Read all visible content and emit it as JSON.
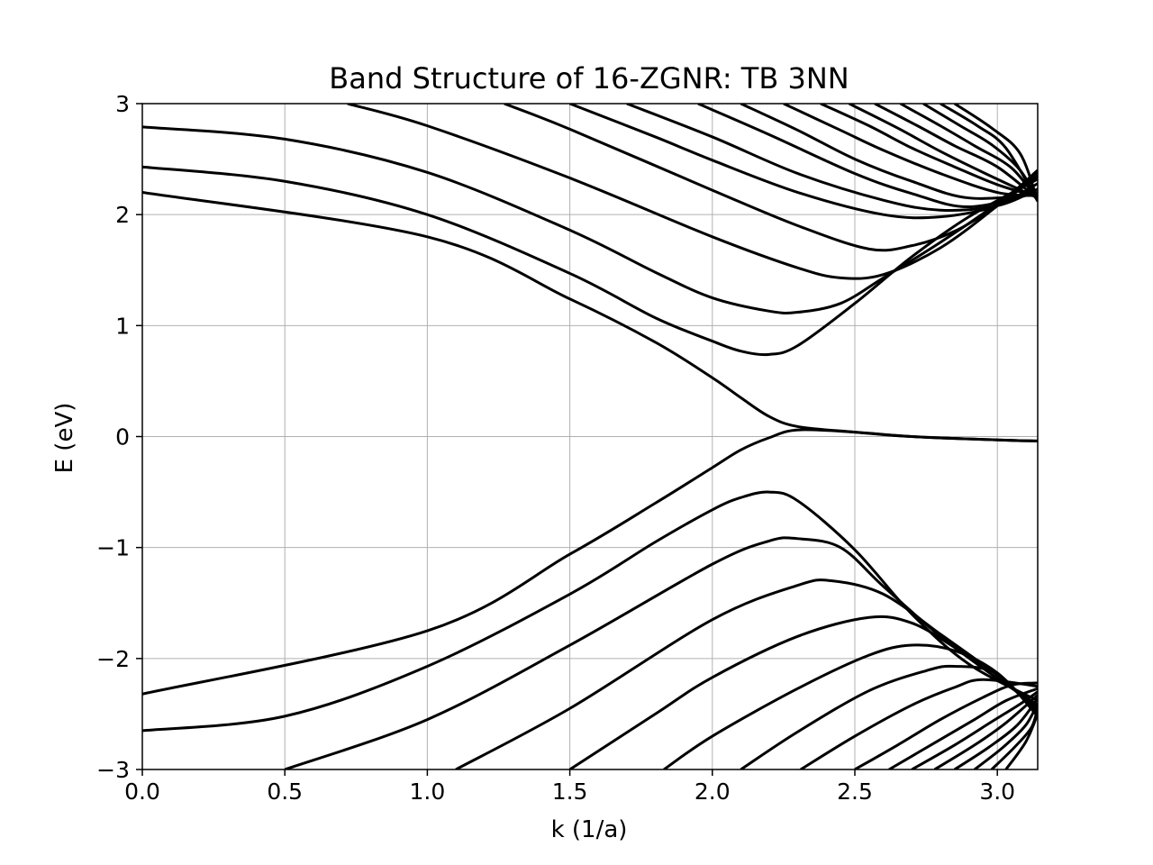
{
  "chart_data": {
    "type": "line",
    "title": "Band Structure of 16-ZGNR: TB 3NN",
    "xlabel": "k (1/a)",
    "ylabel": "E (eV)",
    "xlim": [
      0,
      3.1416
    ],
    "ylim": [
      -3,
      3
    ],
    "xticks": [
      0.0,
      0.5,
      1.0,
      1.5,
      2.0,
      2.5,
      3.0
    ],
    "xtick_labels": [
      "0.0",
      "0.5",
      "1.0",
      "1.5",
      "2.0",
      "2.5",
      "3.0"
    ],
    "yticks": [
      -3,
      -2,
      -1,
      0,
      1,
      2,
      3
    ],
    "ytick_labels": [
      "−3",
      "−2",
      "−1",
      "0",
      "1",
      "2",
      "3"
    ],
    "grid": true,
    "line_color": "#000000",
    "grid_color": "#b0b0b0",
    "series": [
      {
        "x": [
          0,
          1.0,
          1.5,
          1.8,
          2.0,
          2.1,
          2.2,
          2.3,
          2.5,
          2.7,
          3.0,
          3.1416
        ],
        "y": [
          2.2,
          1.8,
          1.24,
          0.85,
          0.53,
          0.35,
          0.18,
          0.09,
          0.04,
          0.0,
          -0.03,
          -0.04
        ]
      },
      {
        "x": [
          0,
          0.5,
          1.0,
          1.5,
          1.8,
          2.0,
          2.1,
          2.2,
          2.3,
          2.5,
          2.7,
          2.9,
          3.1416
        ],
        "y": [
          2.43,
          2.3,
          2.0,
          1.47,
          1.07,
          0.86,
          0.77,
          0.74,
          0.82,
          1.2,
          1.62,
          1.98,
          2.32
        ]
      },
      {
        "x": [
          0,
          0.5,
          1.0,
          1.5,
          1.8,
          2.0,
          2.2,
          2.3,
          2.45,
          2.6,
          2.8,
          3.0,
          3.1416
        ],
        "y": [
          2.79,
          2.68,
          2.38,
          1.86,
          1.48,
          1.25,
          1.13,
          1.12,
          1.2,
          1.43,
          1.75,
          2.1,
          2.38
        ]
      },
      {
        "x": [
          0.72,
          1.0,
          1.5,
          2.0,
          2.3,
          2.45,
          2.6,
          2.8,
          3.0,
          3.1416
        ],
        "y": [
          3.0,
          2.8,
          2.33,
          1.8,
          1.52,
          1.43,
          1.46,
          1.7,
          2.08,
          2.4
        ]
      },
      {
        "x": [
          1.27,
          1.5,
          2.0,
          2.3,
          2.55,
          2.7,
          2.85,
          3.0,
          3.1416
        ],
        "y": [
          3.0,
          2.77,
          2.22,
          1.9,
          1.69,
          1.72,
          1.85,
          2.08,
          2.35
        ]
      },
      {
        "x": [
          1.5,
          1.8,
          2.0,
          2.3,
          2.6,
          2.8,
          3.0,
          3.1416
        ],
        "y": [
          3.0,
          2.7,
          2.49,
          2.2,
          2.0,
          1.98,
          2.08,
          2.28
        ]
      },
      {
        "x": [
          1.7,
          2.0,
          2.3,
          2.6,
          2.8,
          3.0,
          3.1416
        ],
        "y": [
          3.0,
          2.7,
          2.37,
          2.13,
          2.04,
          2.08,
          2.23
        ]
      },
      {
        "x": [
          1.95,
          2.2,
          2.5,
          2.7,
          2.9,
          3.1416
        ],
        "y": [
          3.0,
          2.72,
          2.37,
          2.19,
          2.07,
          2.2
        ]
      },
      {
        "x": [
          2.1,
          2.3,
          2.5,
          2.7,
          2.9,
          3.1416
        ],
        "y": [
          3.0,
          2.76,
          2.5,
          2.3,
          2.15,
          2.18
        ]
      },
      {
        "x": [
          2.25,
          2.45,
          2.6,
          2.8,
          3.0,
          3.1416
        ],
        "y": [
          3.0,
          2.76,
          2.58,
          2.37,
          2.2,
          2.17
        ]
      },
      {
        "x": [
          2.38,
          2.55,
          2.7,
          2.85,
          3.0,
          3.1416
        ],
        "y": [
          3.0,
          2.8,
          2.6,
          2.43,
          2.27,
          2.16
        ]
      },
      {
        "x": [
          2.48,
          2.65,
          2.8,
          2.95,
          3.1416
        ],
        "y": [
          3.0,
          2.78,
          2.57,
          2.38,
          2.15
        ]
      },
      {
        "x": [
          2.57,
          2.72,
          2.85,
          3.0,
          3.1416
        ],
        "y": [
          3.0,
          2.8,
          2.62,
          2.43,
          2.14
        ]
      },
      {
        "x": [
          2.66,
          2.8,
          2.92,
          3.05,
          3.1416
        ],
        "y": [
          3.0,
          2.8,
          2.62,
          2.42,
          2.13
        ]
      },
      {
        "x": [
          2.74,
          2.87,
          2.98,
          3.08,
          3.1416
        ],
        "y": [
          3.0,
          2.8,
          2.63,
          2.4,
          2.13
        ]
      },
      {
        "x": [
          2.8,
          2.93,
          3.03,
          3.1416
        ],
        "y": [
          3.0,
          2.8,
          2.6,
          2.12
        ]
      },
      {
        "x": [
          2.85,
          2.98,
          3.08,
          3.1416
        ],
        "y": [
          3.0,
          2.78,
          2.55,
          2.12
        ]
      },
      {
        "x": [
          0,
          1.0,
          1.5,
          1.8,
          2.0,
          2.1,
          2.2,
          2.3,
          2.5,
          2.7,
          3.0,
          3.1416
        ],
        "y": [
          -2.32,
          -1.75,
          -1.06,
          -0.6,
          -0.28,
          -0.12,
          -0.01,
          0.06,
          0.04,
          0.0,
          -0.03,
          -0.04
        ]
      },
      {
        "x": [
          0,
          0.5,
          1.0,
          1.5,
          1.8,
          2.0,
          2.1,
          2.2,
          2.3,
          2.5,
          2.7,
          2.9,
          3.1416
        ],
        "y": [
          -2.65,
          -2.52,
          -2.07,
          -1.42,
          -0.95,
          -0.66,
          -0.55,
          -0.5,
          -0.58,
          -1.02,
          -1.6,
          -2.05,
          -2.38
        ]
      },
      {
        "x": [
          0.5,
          1.0,
          1.5,
          2.0,
          2.2,
          2.3,
          2.45,
          2.6,
          2.8,
          3.0,
          3.1416
        ],
        "y": [
          -3.0,
          -2.55,
          -1.88,
          -1.15,
          -0.94,
          -0.92,
          -1.0,
          -1.35,
          -1.8,
          -2.18,
          -2.42
        ]
      },
      {
        "x": [
          1.1,
          1.5,
          2.0,
          2.3,
          2.42,
          2.6,
          2.8,
          3.0,
          3.1416
        ],
        "y": [
          -3.0,
          -2.45,
          -1.65,
          -1.34,
          -1.3,
          -1.42,
          -1.78,
          -2.15,
          -2.45
        ]
      },
      {
        "x": [
          1.5,
          1.8,
          2.0,
          2.3,
          2.55,
          2.7,
          2.85,
          3.0,
          3.1416
        ],
        "y": [
          -3.0,
          -2.5,
          -2.17,
          -1.8,
          -1.63,
          -1.68,
          -1.9,
          -2.15,
          -2.48
        ]
      },
      {
        "x": [
          1.83,
          2.0,
          2.3,
          2.55,
          2.7,
          2.85,
          3.0,
          3.1416
        ],
        "y": [
          -3.0,
          -2.7,
          -2.27,
          -1.97,
          -1.88,
          -1.93,
          -2.13,
          -2.5
        ]
      },
      {
        "x": [
          2.1,
          2.3,
          2.55,
          2.75,
          2.85,
          3.0,
          3.1416
        ],
        "y": [
          -3.0,
          -2.66,
          -2.29,
          -2.11,
          -2.07,
          -2.14,
          -2.52
        ]
      },
      {
        "x": [
          2.31,
          2.5,
          2.7,
          2.85,
          2.95,
          3.1416
        ],
        "y": [
          -3.0,
          -2.7,
          -2.42,
          -2.26,
          -2.19,
          -2.25
        ]
      },
      {
        "x": [
          2.5,
          2.65,
          2.8,
          2.95,
          3.05,
          3.1416
        ],
        "y": [
          -3.0,
          -2.78,
          -2.55,
          -2.35,
          -2.24,
          -2.22
        ]
      },
      {
        "x": [
          2.62,
          2.78,
          2.92,
          3.03,
          3.1416
        ],
        "y": [
          -3.0,
          -2.76,
          -2.55,
          -2.38,
          -2.27
        ]
      },
      {
        "x": [
          2.7,
          2.85,
          2.98,
          3.08,
          3.1416
        ],
        "y": [
          -3.0,
          -2.78,
          -2.57,
          -2.41,
          -2.3
        ]
      },
      {
        "x": [
          2.78,
          2.92,
          3.03,
          3.1416
        ],
        "y": [
          -3.0,
          -2.78,
          -2.58,
          -2.33
        ]
      },
      {
        "x": [
          2.85,
          2.97,
          3.07,
          3.1416
        ],
        "y": [
          -3.0,
          -2.8,
          -2.6,
          -2.36
        ]
      },
      {
        "x": [
          2.92,
          3.02,
          3.1,
          3.1416
        ],
        "y": [
          -3.0,
          -2.8,
          -2.6,
          -2.4
        ]
      },
      {
        "x": [
          2.98,
          3.06,
          3.12,
          3.1416
        ],
        "y": [
          -3.0,
          -2.8,
          -2.62,
          -2.44
        ]
      },
      {
        "x": [
          3.03,
          3.1,
          3.1416
        ],
        "y": [
          -3.0,
          -2.75,
          -2.5
        ]
      }
    ]
  }
}
